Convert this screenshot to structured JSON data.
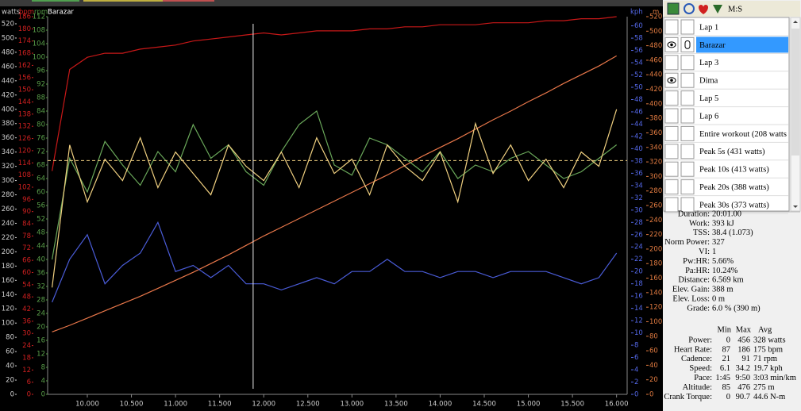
{
  "chart_data": {
    "type": "line",
    "title": "Barazar",
    "x": [
      9.6,
      9.8,
      10.0,
      10.2,
      10.4,
      10.6,
      10.8,
      11.0,
      11.2,
      11.4,
      11.6,
      11.8,
      12.0,
      12.2,
      12.4,
      12.6,
      12.8,
      13.0,
      13.2,
      13.4,
      13.6,
      13.8,
      14.0,
      14.2,
      14.4,
      14.6,
      14.8,
      15.0,
      15.2,
      15.4,
      15.6,
      15.8,
      16.0
    ],
    "xlim": [
      9.55,
      16.12
    ],
    "xticks": [
      {
        "value": 10,
        "label": "10.000"
      },
      {
        "value": 10.5,
        "label": "10.500"
      },
      {
        "value": 11,
        "label": "11.000"
      },
      {
        "value": 11.5,
        "label": "11.500"
      },
      {
        "value": 12,
        "label": "12.000"
      },
      {
        "value": 12.5,
        "label": "12.500"
      },
      {
        "value": 13,
        "label": "13.000"
      },
      {
        "value": 13.5,
        "label": "13.500"
      },
      {
        "value": 14,
        "label": "14.000"
      },
      {
        "value": 14.5,
        "label": "14.500"
      },
      {
        "value": 15,
        "label": "15.000"
      },
      {
        "value": 15.5,
        "label": "15.500"
      },
      {
        "value": 16,
        "label": "16.000"
      }
    ],
    "axes": [
      {
        "label": "watts",
        "color": "#d0d0d0",
        "ylim": [
          0,
          530
        ],
        "yticks": [
          0,
          20,
          40,
          60,
          80,
          100,
          120,
          140,
          160,
          180,
          200,
          220,
          240,
          260,
          280,
          300,
          320,
          340,
          360,
          380,
          400,
          420,
          440,
          460,
          480,
          500,
          520
        ]
      },
      {
        "label": "bpm",
        "color": "#d02020",
        "ylim": [
          0,
          186
        ],
        "yticks": [
          0,
          6,
          12,
          18,
          24,
          30,
          36,
          42,
          48,
          54,
          60,
          66,
          72,
          78,
          84,
          90,
          96,
          102,
          108,
          114,
          120,
          126,
          132,
          138,
          144,
          150,
          156,
          162,
          168,
          174,
          180,
          186
        ]
      },
      {
        "label": "rpm",
        "color": "#5aa04a",
        "ylim": [
          0,
          112
        ],
        "yticks": [
          0,
          4,
          8,
          12,
          16,
          20,
          24,
          28,
          32,
          36,
          40,
          44,
          48,
          52,
          56,
          60,
          64,
          68,
          72,
          76,
          80,
          84,
          88,
          92,
          96,
          100,
          104,
          108,
          112
        ]
      },
      {
        "label": "kph",
        "color": "#5468e8",
        "ylim": [
          0,
          61.5
        ],
        "yticks": [
          0,
          2,
          4,
          6,
          8,
          10,
          12,
          14,
          16,
          18,
          20,
          22,
          24,
          26,
          28,
          30,
          32,
          34,
          36,
          38,
          40,
          42,
          44,
          46,
          48,
          50,
          52,
          54,
          56,
          58,
          60
        ]
      },
      {
        "label": "m",
        "color": "#e07a40",
        "ylim": [
          0,
          520
        ],
        "yticks": [
          0,
          20,
          40,
          60,
          80,
          100,
          120,
          140,
          160,
          180,
          200,
          220,
          240,
          260,
          280,
          300,
          320,
          340,
          360,
          380,
          400,
          420,
          440,
          460,
          480,
          500,
          520
        ]
      }
    ],
    "series": [
      {
        "axis": "m",
        "color": "#e8774a",
        "values": [
          86,
          95,
          105,
          115,
          125,
          135,
          146,
          157,
          168,
          180,
          192,
          205,
          218,
          230,
          242,
          254,
          266,
          278,
          290,
          302,
          315,
          328,
          340,
          352,
          365,
          378,
          390,
          403,
          415,
          428,
          440,
          452,
          466
        ]
      },
      {
        "axis": "kph",
        "color": "#4a5cd8",
        "values": [
          15,
          22,
          26,
          18,
          21,
          23,
          28,
          20,
          21,
          19,
          21,
          18,
          18,
          17,
          18,
          19,
          18,
          20,
          20,
          22,
          20,
          20,
          19,
          20,
          20,
          19,
          20,
          20,
          20,
          19,
          18,
          19,
          23
        ]
      },
      {
        "axis": "rpm",
        "color": "#6aa85a",
        "values": [
          40,
          70,
          60,
          75,
          68,
          62,
          72,
          66,
          80,
          70,
          74,
          66,
          62,
          72,
          80,
          84,
          68,
          65,
          76,
          74,
          70,
          66,
          72,
          64,
          68,
          66,
          70,
          72,
          68,
          64,
          66,
          70,
          74
        ]
      },
      {
        "axis": "bpm",
        "color": "#c81818",
        "values": [
          110,
          160,
          166,
          168,
          168,
          170,
          171,
          172,
          174,
          175,
          176,
          177,
          178,
          177,
          178,
          179,
          179,
          179,
          180,
          180,
          181,
          181,
          182,
          182,
          182,
          183,
          183,
          183,
          184,
          184,
          185,
          185,
          186
        ]
      },
      {
        "axis": "watts",
        "color": "#f0d080",
        "values": [
          150,
          350,
          270,
          330,
          300,
          360,
          290,
          340,
          310,
          280,
          350,
          320,
          300,
          340,
          290,
          360,
          310,
          330,
          280,
          350,
          320,
          300,
          340,
          270,
          380,
          310,
          350,
          300,
          330,
          290,
          340,
          320,
          400
        ]
      }
    ],
    "avg_line": {
      "axis": "watts",
      "value": 328,
      "color": "#f0d080"
    },
    "cursor_x": 11.88
  },
  "panel": {
    "toolbar": "M:S",
    "laps": [
      {
        "label": "Lap 1",
        "visible": false,
        "selected": false
      },
      {
        "label": "Barazar",
        "visible": true,
        "selected": true
      },
      {
        "label": "Lap 3",
        "visible": false,
        "selected": false
      },
      {
        "label": "Dima",
        "visible": true,
        "selected": false
      },
      {
        "label": "Lap 5",
        "visible": false,
        "selected": false
      },
      {
        "label": "Lap 6",
        "visible": false,
        "selected": false
      },
      {
        "label": "Entire workout (208 watts",
        "visible": false,
        "selected": false
      },
      {
        "label": "Peak 5s (431 watts)",
        "visible": false,
        "selected": false
      },
      {
        "label": "Peak 10s (413 watts)",
        "visible": false,
        "selected": false
      },
      {
        "label": "Peak 20s (388 watts)",
        "visible": false,
        "selected": false
      },
      {
        "label": "Peak 30s (373 watts)",
        "visible": false,
        "selected": false
      }
    ],
    "summary": [
      {
        "label": "Duration:",
        "value": "20:01.00"
      },
      {
        "label": "Work:",
        "value": "393 kJ"
      },
      {
        "label": "TSS:",
        "value": "38.4 (1.073)"
      },
      {
        "label": "Norm Power:",
        "value": "327"
      },
      {
        "label": "VI:",
        "value": "1"
      },
      {
        "label": "Pw:HR:",
        "value": "5.66%"
      },
      {
        "label": "Pa:HR:",
        "value": "10.24%"
      },
      {
        "label": "Distance:",
        "value": "6.569 km"
      },
      {
        "label": "Elev. Gain:",
        "value": "388 m"
      },
      {
        "label": "Elev. Loss:",
        "value": "0 m"
      },
      {
        "label": "Grade:",
        "value": "6.0 % (390 m)"
      }
    ],
    "table": {
      "header": [
        "Min",
        "Max",
        "Avg"
      ],
      "rows": [
        {
          "label": "Power:",
          "cells": [
            "0",
            "456",
            "328 watts"
          ]
        },
        {
          "label": "Heart Rate:",
          "cells": [
            "87",
            "186",
            "175 bpm"
          ]
        },
        {
          "label": "Cadence:",
          "cells": [
            "21",
            "91",
            "71 rpm"
          ]
        },
        {
          "label": "Speed:",
          "cells": [
            "6.1",
            "34.2",
            "19.7 kph"
          ]
        },
        {
          "label": "Pace:",
          "cells": [
            "1:45",
            "9:50",
            "3:03 min/km"
          ]
        },
        {
          "label": "Altitude:",
          "cells": [
            "85",
            "476",
            "275 m"
          ]
        },
        {
          "label": "Crank Torque:",
          "cells": [
            "0",
            "90.7",
            "44.6 N-m"
          ]
        }
      ]
    }
  }
}
